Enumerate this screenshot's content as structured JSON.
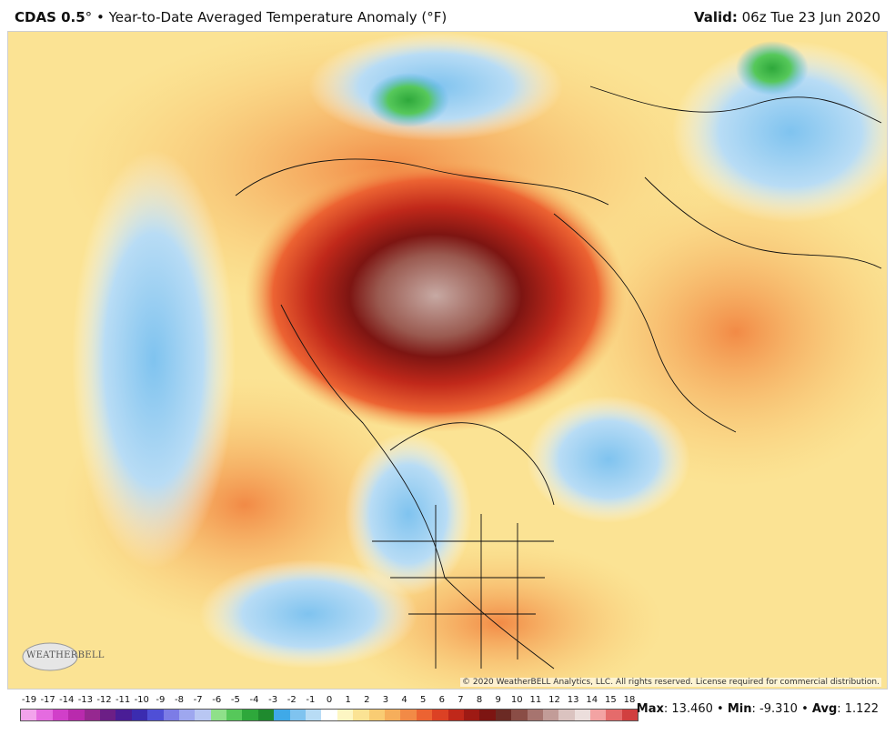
{
  "header": {
    "model": "CDAS 0.5",
    "degree": "°",
    "bullet": " • ",
    "title": "Year-to-Date Averaged Temperature Anomaly (°F)",
    "valid_label": "Valid:",
    "valid_value": " 06z Tue 23 Jun 2020"
  },
  "map": {
    "copyright": "© 2020 WeatherBELL Analytics, LLC. All rights reserved. License required for commercial distribution.",
    "logo_text": "WEATHERBELL"
  },
  "legend": {
    "ticks": [
      "-19",
      "-17",
      "-14",
      "-13",
      "-12",
      "-11",
      "-10",
      "-9",
      "-8",
      "-7",
      "-6",
      "-5",
      "-4",
      "-3",
      "-2",
      "-1",
      "0",
      "1",
      "2",
      "3",
      "4",
      "5",
      "6",
      "7",
      "8",
      "9",
      "10",
      "11",
      "12",
      "13",
      "14",
      "15",
      "18"
    ],
    "colors": [
      "#f3a3ec",
      "#e56be0",
      "#d13fc9",
      "#b92aad",
      "#962890",
      "#6c1f86",
      "#4a1d96",
      "#3b2cb0",
      "#4f4fd6",
      "#7c7ce6",
      "#9ea7ef",
      "#b9c7f3",
      "#8fe08a",
      "#56c85a",
      "#2ea83b",
      "#1f8a2e",
      "#3fa9e8",
      "#7fc3ef",
      "#b8dcf5",
      "#ffffff",
      "#fdf6c3",
      "#fbe394",
      "#f9cc73",
      "#f6ae5b",
      "#f28a46",
      "#ec6332",
      "#dc4124",
      "#c0281a",
      "#9e1a14",
      "#7d1512",
      "#6b2a24",
      "#8a4d46",
      "#a7746f",
      "#c29c98",
      "#dbc3c0",
      "#ecdedc",
      "#f3a3a3",
      "#e56b6b",
      "#d13f3f"
    ]
  },
  "stats": {
    "max_label": "Max",
    "max_value": "13.460",
    "min_label": "Min",
    "min_value": "-9.310",
    "avg_label": "Avg",
    "avg_value": "1.122",
    "sep": " • "
  }
}
